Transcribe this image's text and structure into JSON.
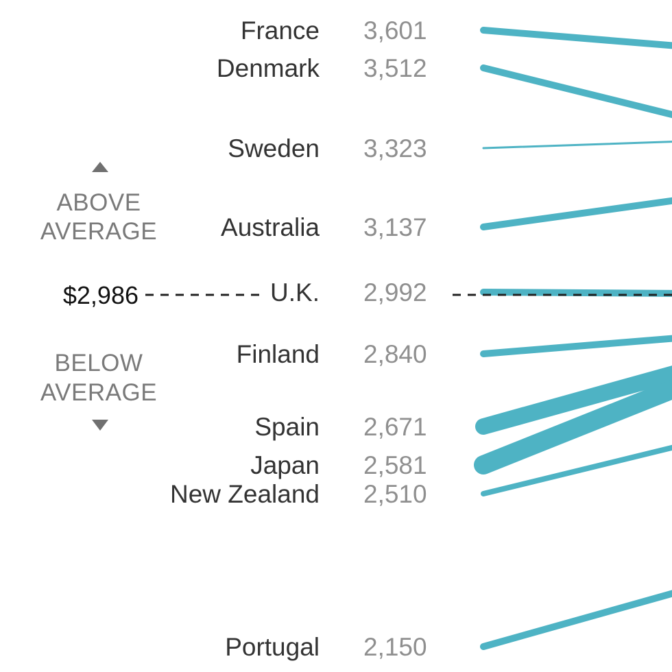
{
  "chart_data": {
    "type": "line",
    "average": {
      "label": "$2,986",
      "value": 2986
    },
    "annotations": {
      "above": [
        "ABOVE",
        "AVERAGE"
      ],
      "below": [
        "BELOW",
        "AVERAGE"
      ]
    },
    "series": [
      {
        "name": "France",
        "value": 3601,
        "label": "3,601"
      },
      {
        "name": "Denmark",
        "value": 3512,
        "label": "3,512"
      },
      {
        "name": "Sweden",
        "value": 3323,
        "label": "3,323"
      },
      {
        "name": "Australia",
        "value": 3137,
        "label": "3,137"
      },
      {
        "name": "U.K.",
        "value": 2992,
        "label": "2,992"
      },
      {
        "name": "Finland",
        "value": 2840,
        "label": "2,840"
      },
      {
        "name": "Spain",
        "value": 2671,
        "label": "2,671"
      },
      {
        "name": "Japan",
        "value": 2581,
        "label": "2,581"
      },
      {
        "name": "New Zealand",
        "value": 2510,
        "label": "2,510"
      },
      {
        "name": "Portugal",
        "value": 2150,
        "label": "2,150"
      }
    ],
    "line_color": "#4eb3c4"
  }
}
